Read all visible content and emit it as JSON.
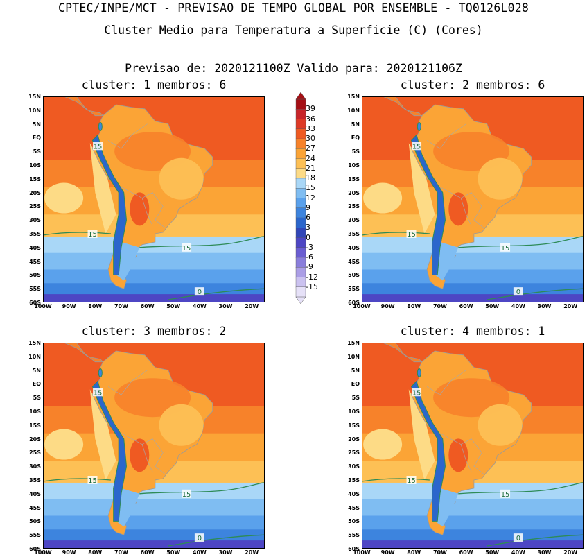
{
  "header": {
    "line1": "CPTEC/INPE/MCT - PREVISAO DE TEMPO GLOBAL POR ENSEMBLE - TQ0126L028",
    "line2": "Cluster Medio para Temperatura a Superficie (C) (Cores)",
    "line3": "Previsao de: 2020121100Z   Valido para: 2020121106Z"
  },
  "lat_labels": [
    "15N",
    "10N",
    "5N",
    "EQ",
    "5S",
    "10S",
    "15S",
    "20S",
    "25S",
    "30S",
    "35S",
    "40S",
    "45S",
    "50S",
    "55S",
    "60S"
  ],
  "lon_labels": [
    "100W",
    "90W",
    "80W",
    "70W",
    "60W",
    "50W",
    "40W",
    "30W",
    "20W"
  ],
  "colorbar": {
    "levels": [
      "39",
      "36",
      "33",
      "30",
      "27",
      "24",
      "21",
      "18",
      "15",
      "12",
      "9",
      "6",
      "3",
      "0",
      "-3",
      "-6",
      "-9",
      "-12",
      "-15"
    ],
    "colors": [
      "#a50f15",
      "#c8252a",
      "#de3a26",
      "#ef5a22",
      "#f7822a",
      "#fba436",
      "#fdc055",
      "#fddb86",
      "#a9d7f7",
      "#7fbdf2",
      "#5aa1ec",
      "#3d84de",
      "#2b66cc",
      "#3146b8",
      "#4d46c4",
      "#6a5dd2",
      "#8a7edc",
      "#ab9ee6",
      "#cbc2f0",
      "#e6e1f8"
    ]
  },
  "panels": [
    {
      "title": "cluster: 1   membros: 6",
      "contour_labels": [
        "15",
        "15",
        "15",
        "0"
      ]
    },
    {
      "title": "cluster: 2   membros: 6",
      "contour_labels": [
        "15",
        "15",
        "15",
        "0"
      ]
    },
    {
      "title": "cluster: 3   membros: 2",
      "contour_labels": [
        "15",
        "15",
        "15",
        "0"
      ]
    },
    {
      "title": "cluster: 4   membros: 1",
      "contour_labels": [
        "15",
        "15",
        "15",
        "0"
      ]
    }
  ]
}
